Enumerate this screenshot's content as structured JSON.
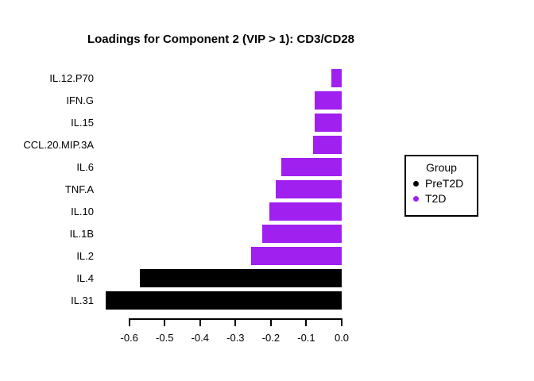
{
  "window": {
    "background_color": "#FFFFFF",
    "foreground_color": "#000000"
  },
  "chart_data": {
    "type": "bar",
    "orientation": "horizontal",
    "title": "Loadings for Component 2 (VIP > 1): CD3/CD28",
    "xlabel": "",
    "ylabel": "",
    "grid": false,
    "categories": [
      "IL.12.P70",
      "IFN.G",
      "IL.15",
      "CCL.20.MIP.3A",
      "IL.6",
      "TNF.A",
      "IL.10",
      "IL.1B",
      "IL.2",
      "IL.4",
      "IL.31"
    ],
    "values": [
      -0.029,
      -0.076,
      -0.077,
      -0.081,
      -0.17,
      -0.186,
      -0.204,
      -0.224,
      -0.256,
      -0.57,
      -0.666
    ],
    "bar_groups": [
      "T2D",
      "T2D",
      "T2D",
      "T2D",
      "T2D",
      "T2D",
      "T2D",
      "T2D",
      "T2D",
      "PreT2D",
      "PreT2D"
    ],
    "group_colors": {
      "PreT2D": "#000000",
      "T2D": "#A020F0"
    },
    "xlim": [
      -0.6,
      0.0
    ],
    "x_tick_values": [
      -0.6,
      -0.5,
      -0.4,
      -0.3,
      -0.2,
      -0.1,
      0.0
    ],
    "x_tick_labels": [
      "-0.6",
      "-0.5",
      "-0.4",
      "-0.3",
      "-0.2",
      "-0.1",
      "0.0"
    ],
    "legend": {
      "position": "right",
      "title": "Group",
      "items": [
        {
          "label": "PreT2D",
          "color": "#000000",
          "marker": "circle"
        },
        {
          "label": "T2D",
          "color": "#A020F0",
          "marker": "circle"
        }
      ]
    }
  }
}
